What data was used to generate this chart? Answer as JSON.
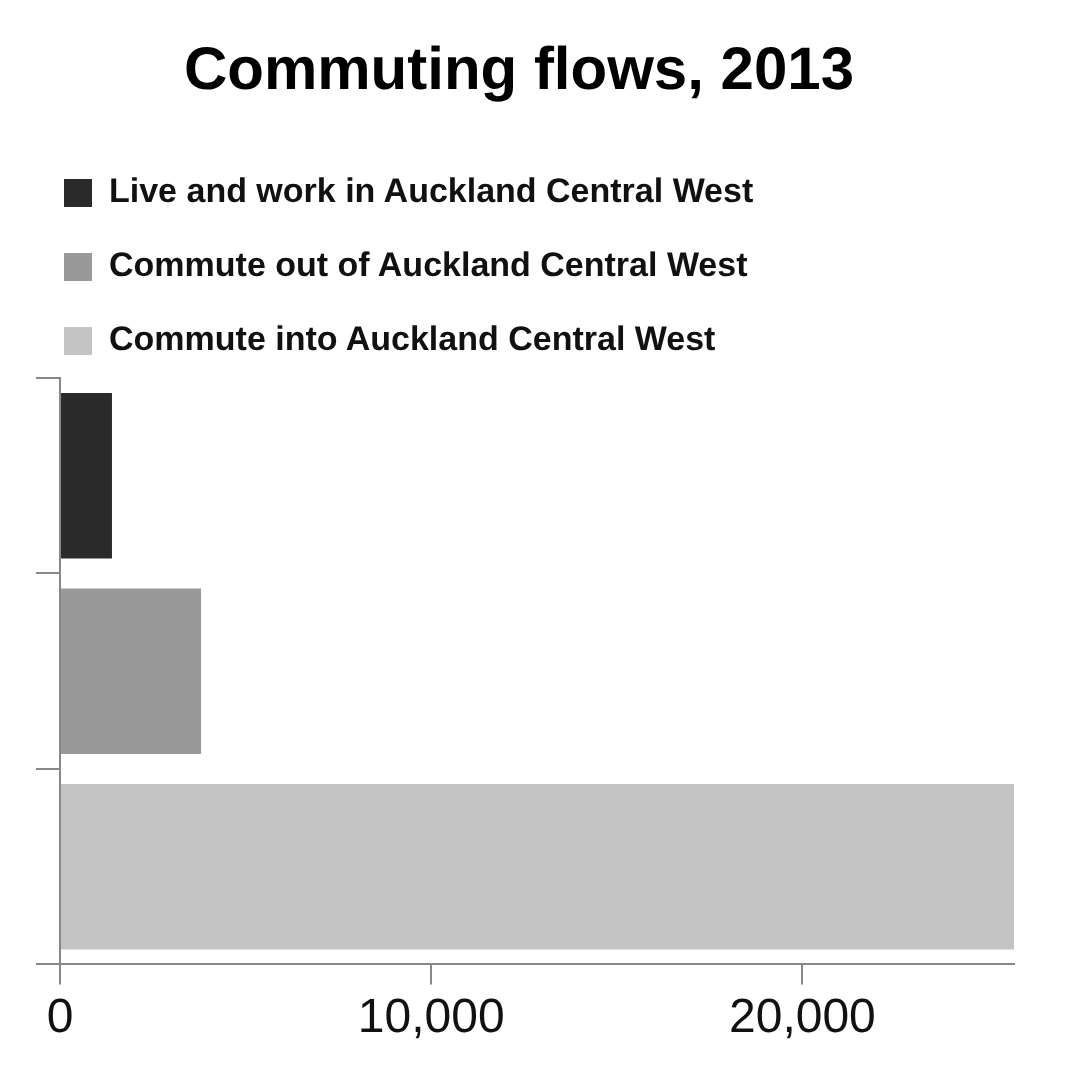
{
  "chart_data": {
    "type": "bar",
    "orientation": "horizontal",
    "title": "Commuting flows, 2013",
    "categories": [
      null,
      null,
      null
    ],
    "series": [
      {
        "name": "Live and work in Auckland Central West",
        "color": "#2a2a2a",
        "values": [
          1400,
          null,
          null
        ]
      },
      {
        "name": "Commute out of Auckland Central West",
        "color": "#999999",
        "values": [
          null,
          3800,
          null
        ]
      },
      {
        "name": "Commute into Auckland Central West",
        "color": "#c4c4c4",
        "values": [
          null,
          null,
          25700
        ]
      }
    ],
    "xlim": [
      0,
      25700
    ],
    "xticks": [
      0,
      {
        "value": 10000,
        "label": "10,000"
      },
      {
        "value": 20000,
        "label": "20,000"
      }
    ],
    "grid": false,
    "legend": "top left"
  }
}
